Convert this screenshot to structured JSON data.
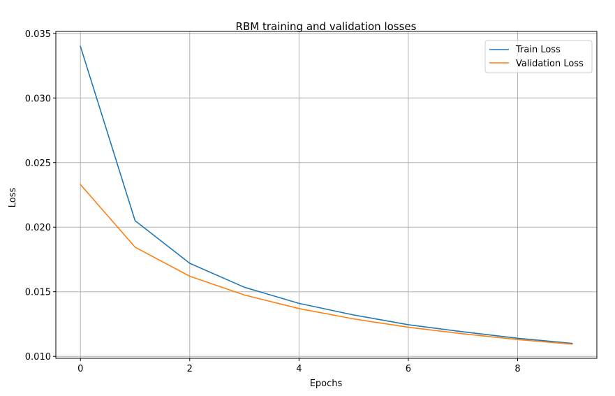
{
  "chart_data": {
    "type": "line",
    "title": "RBM training and validation losses",
    "xlabel": "Epochs",
    "ylabel": "Loss",
    "xlim": [
      -0.45,
      9.45
    ],
    "ylim": [
      0.00985,
      0.03515
    ],
    "xticks": [
      0,
      2,
      4,
      6,
      8
    ],
    "xtick_labels": [
      "0",
      "2",
      "4",
      "6",
      "8"
    ],
    "yticks": [
      0.01,
      0.015,
      0.02,
      0.025,
      0.03,
      0.035
    ],
    "ytick_labels": [
      "0.010",
      "0.015",
      "0.020",
      "0.025",
      "0.030",
      "0.035"
    ],
    "grid": true,
    "legend_position": "top-right",
    "x": [
      0,
      1,
      2,
      3,
      4,
      5,
      6,
      7,
      8,
      9
    ],
    "series": [
      {
        "name": "Train Loss",
        "color": "#1f77b4",
        "values": [
          0.034,
          0.0205,
          0.0172,
          0.01535,
          0.0141,
          0.0132,
          0.01245,
          0.0119,
          0.0114,
          0.011
        ]
      },
      {
        "name": "Validation Loss",
        "color": "#ff7f0e",
        "values": [
          0.0233,
          0.01845,
          0.0162,
          0.01475,
          0.0137,
          0.0129,
          0.01225,
          0.01175,
          0.0113,
          0.01095
        ]
      }
    ]
  }
}
